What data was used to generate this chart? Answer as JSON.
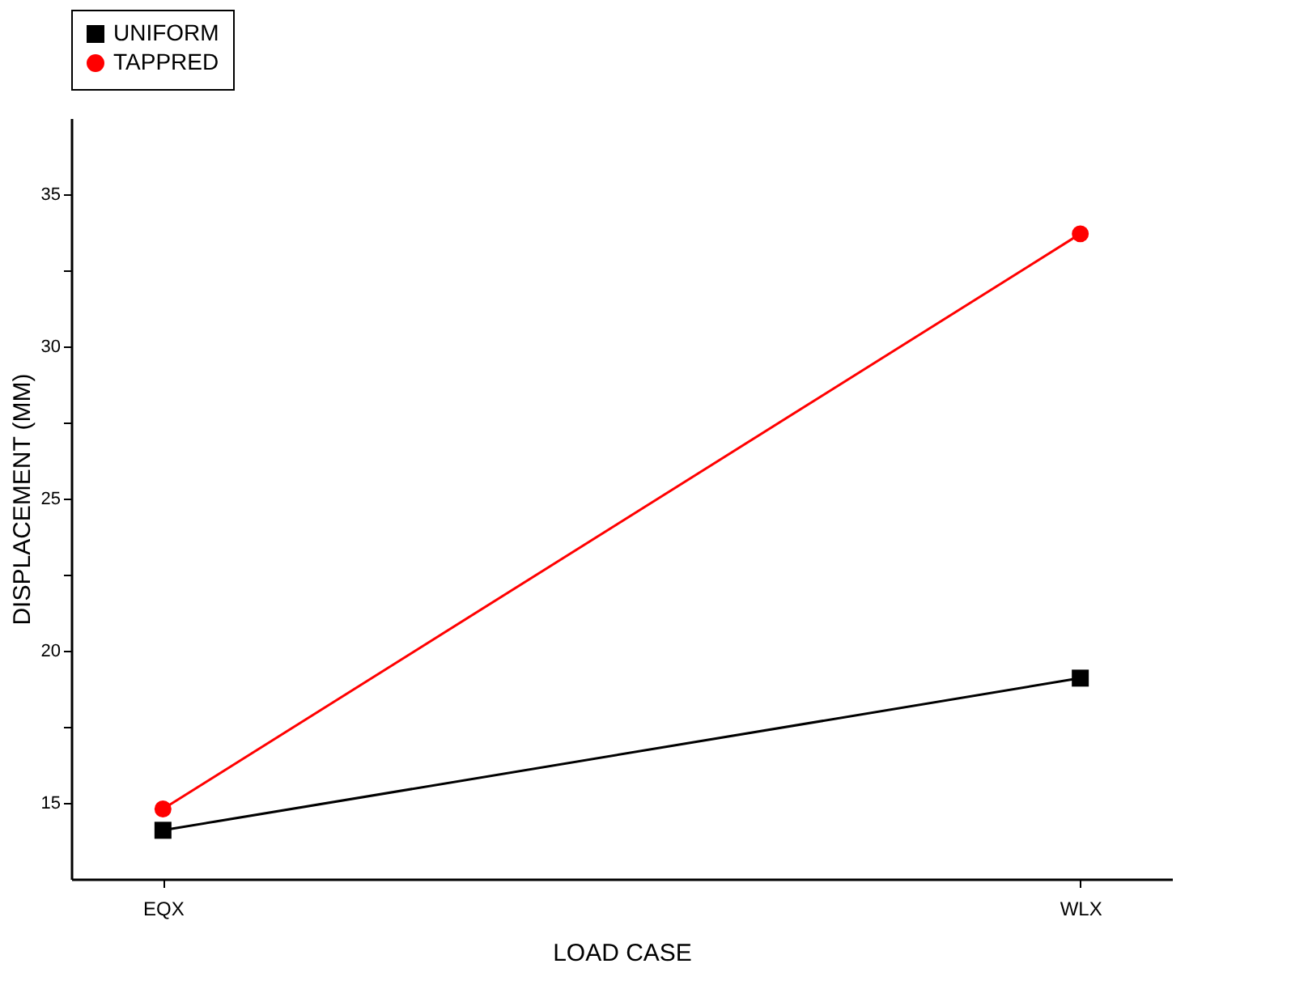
{
  "chart_data": {
    "type": "line",
    "xlabel": "LOAD CASE",
    "ylabel": "DISPLACEMENT (MM)",
    "categories": [
      "EQX",
      "WLX"
    ],
    "series": [
      {
        "name": "UNIFORM",
        "color": "#000000",
        "marker": "square",
        "values": [
          14.1,
          19.1
        ]
      },
      {
        "name": "TAPPRED",
        "color": "#ff0000",
        "marker": "circle",
        "values": [
          14.8,
          33.7
        ]
      }
    ],
    "ylim": [
      12.5,
      37.5
    ],
    "yticks": [
      15,
      {
        "value": 17.5,
        "label": null
      },
      20,
      {
        "value": 22.5,
        "label": null
      },
      25,
      {
        "value": 27.5,
        "label": null
      },
      30,
      {
        "value": 32.5,
        "label": null
      },
      35
    ],
    "grid": false,
    "legend": "top",
    "line_style": "solid"
  }
}
